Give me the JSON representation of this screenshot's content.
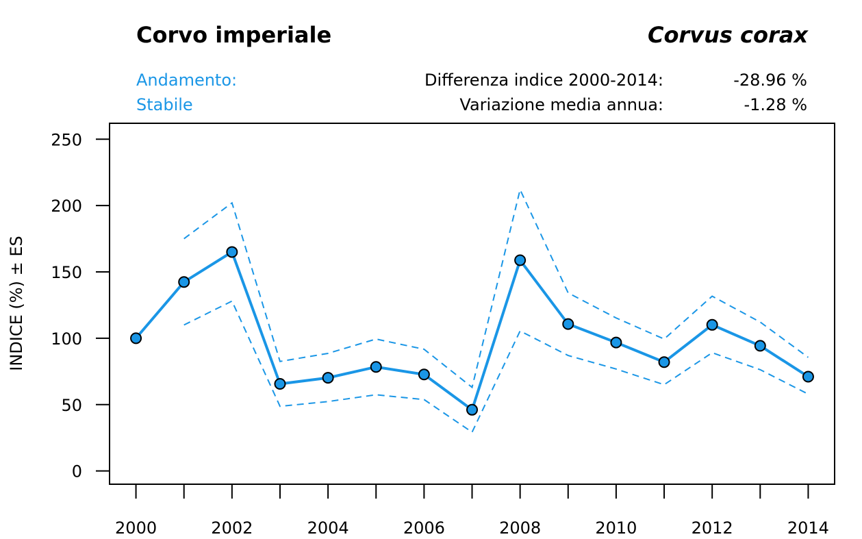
{
  "header": {
    "common_name": "Corvo imperiale",
    "scientific_name": "Corvus corax",
    "trend_label": "Andamento:",
    "trend_value": "Stabile",
    "diff_label": "Differenza indice 2000-2014:",
    "diff_value": "-28.96 %",
    "variation_label": "Variazione media annua:",
    "variation_value": "-1.28 %"
  },
  "colors": {
    "series": "#1a96e6",
    "marker_fill": "#1a96e6",
    "marker_stroke": "#000000",
    "axis": "#000000",
    "trend_text": "#1a96e6"
  },
  "chart_data": {
    "type": "line",
    "title": "Corvo imperiale",
    "subtitle": "Corvus corax",
    "xlabel": "",
    "ylabel": "INDICE (%) ± ES",
    "x": [
      2000,
      2001,
      2002,
      2003,
      2004,
      2005,
      2006,
      2007,
      2008,
      2009,
      2010,
      2011,
      2012,
      2013,
      2014
    ],
    "xlim": [
      1999.45,
      2014.55
    ],
    "ylim": [
      -10,
      262
    ],
    "yticks": [
      0,
      50,
      100,
      150,
      200,
      250
    ],
    "xticks": [
      2000,
      2001,
      2002,
      2003,
      2004,
      2005,
      2006,
      2007,
      2008,
      2009,
      2010,
      2011,
      2012,
      2013,
      2014
    ],
    "xtick_labels": [
      "2000",
      "",
      "2002",
      "",
      "2004",
      "",
      "2006",
      "",
      "2008",
      "",
      "2010",
      "",
      "2012",
      "",
      "2014"
    ],
    "grid": false,
    "series": [
      {
        "name": "Indice",
        "style": "solid-with-markers",
        "values": [
          100,
          142.4,
          165,
          65.6,
          70.2,
          78.4,
          72.7,
          46.1,
          158.8,
          110.7,
          96.8,
          82,
          110.1,
          94.3,
          71.04
        ]
      },
      {
        "name": "Indice + ES",
        "style": "dashed",
        "values": [
          null,
          175,
          202,
          82.5,
          88.6,
          99.4,
          91.7,
          63,
          212,
          134.2,
          115.3,
          99.4,
          131.7,
          112.2,
          85.6
        ]
      },
      {
        "name": "Indice - ES",
        "style": "dashed",
        "values": [
          null,
          110,
          128,
          48.7,
          52.3,
          57.4,
          53.8,
          29.2,
          105.5,
          87,
          76.8,
          65,
          89.1,
          76.3,
          57.9
        ]
      }
    ]
  }
}
